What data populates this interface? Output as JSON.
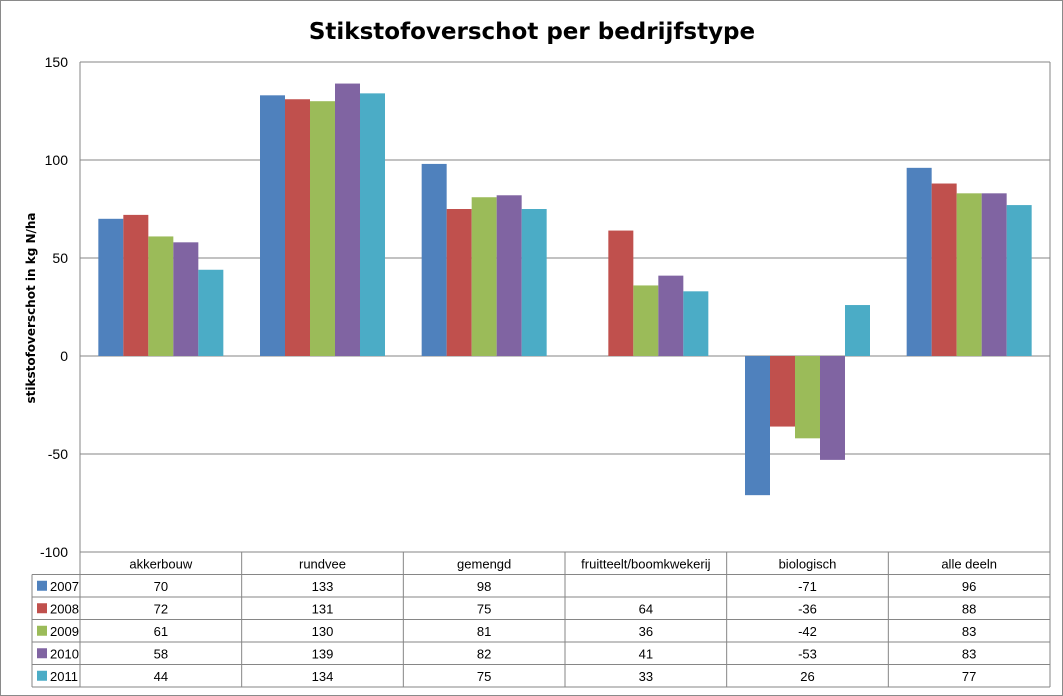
{
  "chart_data": {
    "type": "bar",
    "title": "Stikstofoverschot per bedrijfstype",
    "xlabel": "",
    "ylabel": "stikstofoverschot in kg N/ha",
    "ylim": [
      -100,
      150
    ],
    "yticks": [
      150,
      100,
      50,
      0,
      -50,
      -100
    ],
    "grid": true,
    "legend_position": "data-table-left",
    "categories": [
      "akkerbouw",
      "rundvee",
      "gemengd",
      "fruitteelt/boomkwekerij",
      "biologisch",
      "alle deeln"
    ],
    "series": [
      {
        "name": "2007",
        "color": "#4F81BD",
        "values": [
          70,
          133,
          98,
          null,
          -71,
          96
        ]
      },
      {
        "name": "2008",
        "color": "#C0504D",
        "values": [
          72,
          131,
          75,
          64,
          -36,
          88
        ]
      },
      {
        "name": "2009",
        "color": "#9BBB59",
        "values": [
          61,
          130,
          81,
          36,
          -42,
          83
        ]
      },
      {
        "name": "2010",
        "color": "#8064A2",
        "values": [
          58,
          139,
          82,
          41,
          -53,
          83
        ]
      },
      {
        "name": "2011",
        "color": "#4BACC6",
        "values": [
          44,
          134,
          75,
          33,
          26,
          77
        ]
      }
    ]
  }
}
